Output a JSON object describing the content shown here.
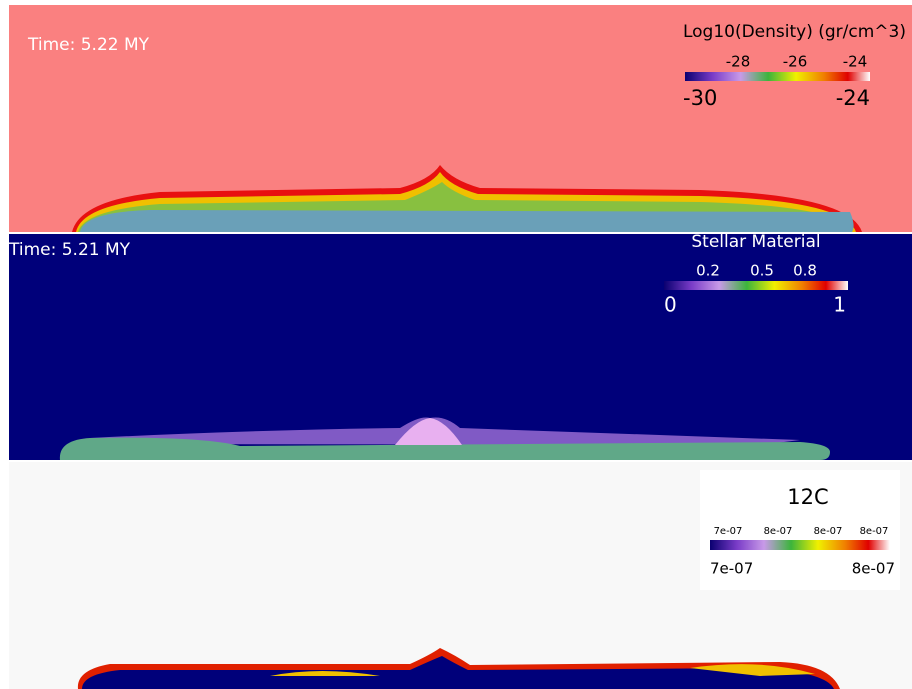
{
  "panels": [
    {
      "time": "Time:  5.22 MY",
      "colorbar": {
        "title": "Log10(Density) (gr/cm^3)",
        "ticks": [
          "-28",
          "-26",
          "-24"
        ],
        "min": "-30",
        "max": "-24"
      }
    },
    {
      "time": "Time:  5.21 MY",
      "colorbar": {
        "title": "Stellar Material",
        "ticks": [
          "0.2",
          "0.5",
          "0.8"
        ],
        "min": "0",
        "max": "1"
      }
    },
    {
      "colorbar": {
        "title": "12C",
        "ticks": [
          "7e-07",
          "8e-07",
          "8e-07",
          "8e-07"
        ],
        "min": "7e-07",
        "max": "8e-07"
      }
    }
  ]
}
